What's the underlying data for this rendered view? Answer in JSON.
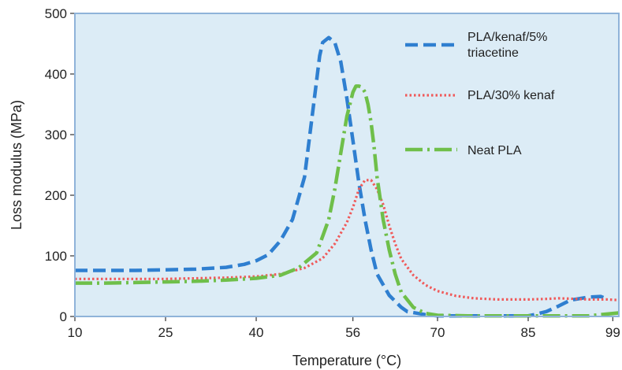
{
  "chart_data": {
    "type": "line",
    "title": "",
    "xlabel": "Temperature (°C)",
    "ylabel": "Loss modulus (MPa)",
    "x_ticks": [
      10,
      25,
      40,
      56,
      70,
      85,
      99
    ],
    "y_ticks": [
      0,
      100,
      200,
      300,
      400,
      500
    ],
    "xlim": [
      10,
      100
    ],
    "ylim": [
      0,
      500
    ],
    "grid": false,
    "plot_background": "#dcecf6",
    "frame_color": "#8fb3d9",
    "legend_position": "top-right",
    "series": [
      {
        "name_lines": [
          "PLA/kenaf/5%",
          "triacetine"
        ],
        "color": "#2f7fd0",
        "dash": "dashed",
        "x": [
          10,
          15,
          20,
          25,
          30,
          35,
          38,
          40,
          42,
          44,
          46,
          48,
          49,
          50,
          50.5,
          51,
          52,
          53,
          54,
          55,
          56,
          57,
          58,
          59,
          60,
          62,
          64,
          65,
          68,
          70,
          75,
          80,
          85,
          86,
          88,
          90,
          92,
          95,
          97,
          98
        ],
        "y": [
          76,
          76,
          76,
          77,
          78,
          81,
          86,
          92,
          102,
          125,
          160,
          230,
          310,
          390,
          430,
          452,
          460,
          452,
          420,
          360,
          290,
          220,
          160,
          110,
          70,
          35,
          15,
          8,
          3,
          1,
          1,
          1,
          1,
          3,
          8,
          17,
          27,
          32,
          33,
          29
        ]
      },
      {
        "name_lines": [
          "PLA/30% kenaf"
        ],
        "color": "#f05a5a",
        "dash": "dotted",
        "x": [
          10,
          15,
          20,
          25,
          30,
          35,
          40,
          44,
          48,
          51,
          53,
          55,
          56,
          57,
          58,
          59,
          60,
          61,
          62,
          63,
          64,
          66,
          68,
          70,
          73,
          76,
          80,
          85,
          88,
          90,
          93,
          95,
          98,
          100
        ],
        "y": [
          62,
          62,
          62,
          62,
          63,
          64,
          66,
          70,
          80,
          96,
          120,
          155,
          180,
          210,
          225,
          225,
          210,
          185,
          150,
          120,
          95,
          68,
          52,
          42,
          34,
          30,
          28,
          28,
          29,
          30,
          29,
          28,
          28,
          27
        ]
      },
      {
        "name_lines": [
          "Neat PLA"
        ],
        "color": "#6fbf4a",
        "dash": "dashdot",
        "x": [
          10,
          15,
          20,
          25,
          30,
          35,
          40,
          44,
          47,
          50,
          52,
          53,
          54,
          55,
          56,
          56.5,
          57,
          57.5,
          58,
          58.5,
          59,
          59.5,
          60,
          61,
          62,
          63,
          64,
          66,
          68,
          70,
          75,
          80,
          85,
          90,
          95,
          100
        ],
        "y": [
          55,
          55,
          56,
          57,
          58,
          60,
          63,
          68,
          80,
          105,
          160,
          210,
          270,
          330,
          370,
          380,
          380,
          378,
          370,
          350,
          320,
          280,
          230,
          160,
          110,
          70,
          40,
          15,
          5,
          2,
          1,
          1,
          1,
          1,
          1,
          6
        ]
      }
    ]
  }
}
